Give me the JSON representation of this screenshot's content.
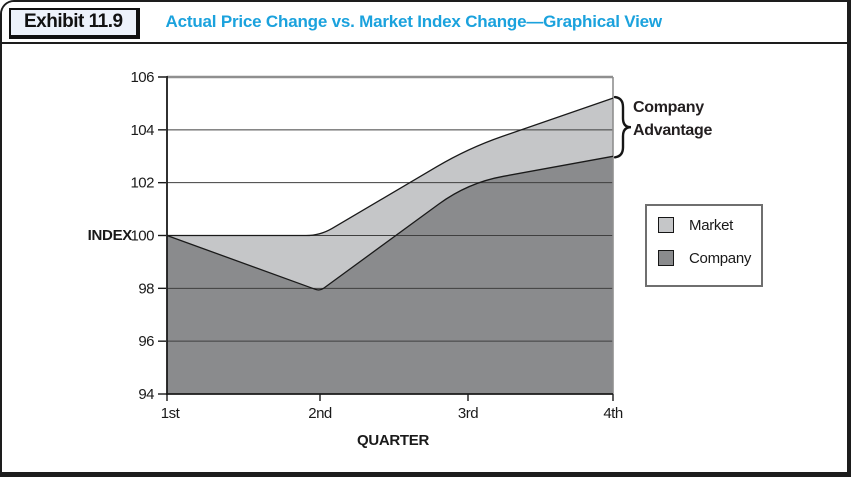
{
  "exhibit": {
    "label": "Exhibit 11.9",
    "title": "Actual Price Change vs. Market Index Change—Graphical View",
    "title_color": "#1ba2dd"
  },
  "chart_data": {
    "type": "area",
    "xlabel": "QUARTER",
    "ylabel": "INDEX",
    "x_categories": [
      "1st",
      "2nd",
      "3rd",
      "4th"
    ],
    "ylim": [
      94,
      106
    ],
    "yticks": [
      106,
      104,
      102,
      100,
      98,
      96,
      94
    ],
    "grid": true,
    "legend_position": "right",
    "series": [
      {
        "name": "Market",
        "color": "#c5c6c8",
        "values": [
          100,
          100,
          103.3,
          105.2
        ]
      },
      {
        "name": "Company",
        "color": "#8a8b8d",
        "values": [
          100,
          97.9,
          102,
          103
        ]
      }
    ],
    "annotation": {
      "lines": [
        "Company",
        "Advantage"
      ]
    }
  }
}
